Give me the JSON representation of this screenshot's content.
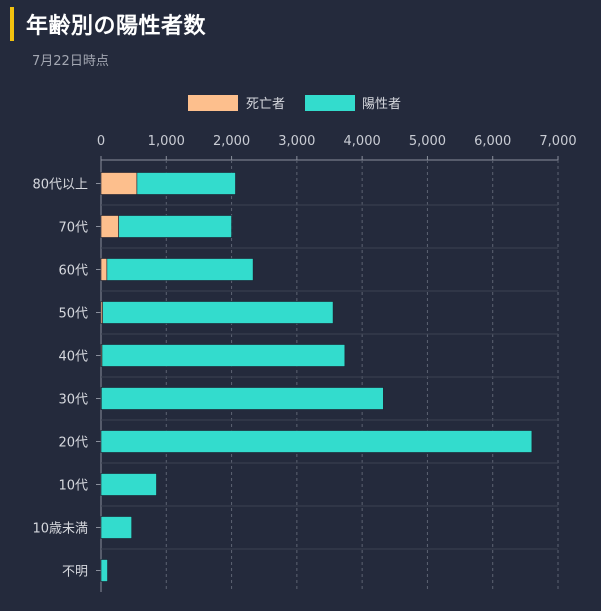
{
  "header": {
    "title": "年齢別の陽性者数",
    "subtitle": "7月22日時点"
  },
  "colors": {
    "background": "#242a3c",
    "accent": "#f2c10e",
    "deaths": "#fdbf8d",
    "positives": "#33dccd"
  },
  "chart_data": {
    "type": "bar",
    "orientation": "horizontal",
    "stacked": true,
    "title": "年齢別の陽性者数",
    "subtitle": "7月22日時点",
    "categories": [
      "80代以上",
      "70代",
      "60代",
      "50代",
      "40代",
      "30代",
      "20代",
      "10代",
      "10歳未満",
      "不明"
    ],
    "series": [
      {
        "name": "死亡者",
        "color": "#fdbf8d",
        "values": [
          550,
          270,
          90,
          25,
          15,
          5,
          0,
          0,
          0,
          0
        ]
      },
      {
        "name": "陽性者",
        "color": "#33dccd",
        "values": [
          1510,
          1730,
          2240,
          3530,
          3720,
          4320,
          6600,
          850,
          470,
          100
        ]
      }
    ],
    "xlim": [
      0,
      7000
    ],
    "xticks": [
      0,
      1000,
      2000,
      3000,
      4000,
      5000,
      6000,
      7000
    ],
    "xtick_labels": [
      "0",
      "1,000",
      "2,000",
      "3,000",
      "4,000",
      "5,000",
      "6,000",
      "7,000"
    ],
    "x_axis_position": "top",
    "grid": true,
    "legend_position": "top-center"
  }
}
